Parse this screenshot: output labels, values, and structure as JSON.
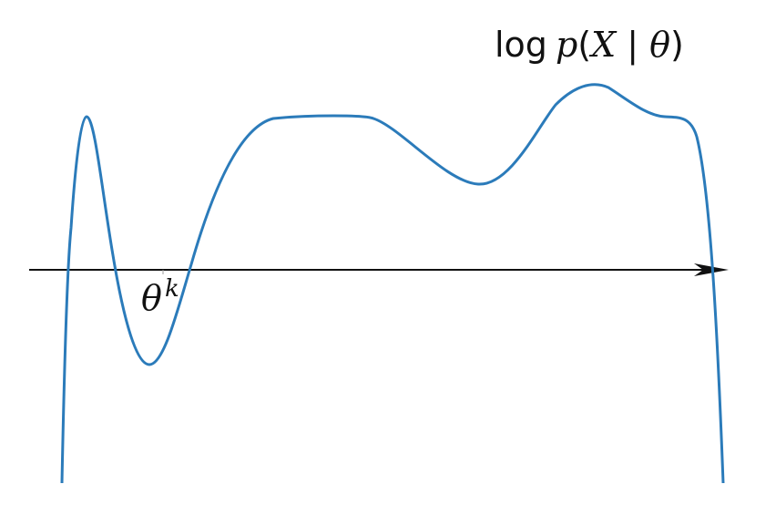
{
  "figure": {
    "function_label": {
      "log": "log",
      "p": "p",
      "open": "(",
      "X": "X",
      "given": " | ",
      "theta": "θ",
      "close": ")"
    },
    "point_label": {
      "base": "θ",
      "superscript": "k"
    },
    "colors": {
      "curve": "#2b7bba",
      "axis": "#111111"
    }
  }
}
